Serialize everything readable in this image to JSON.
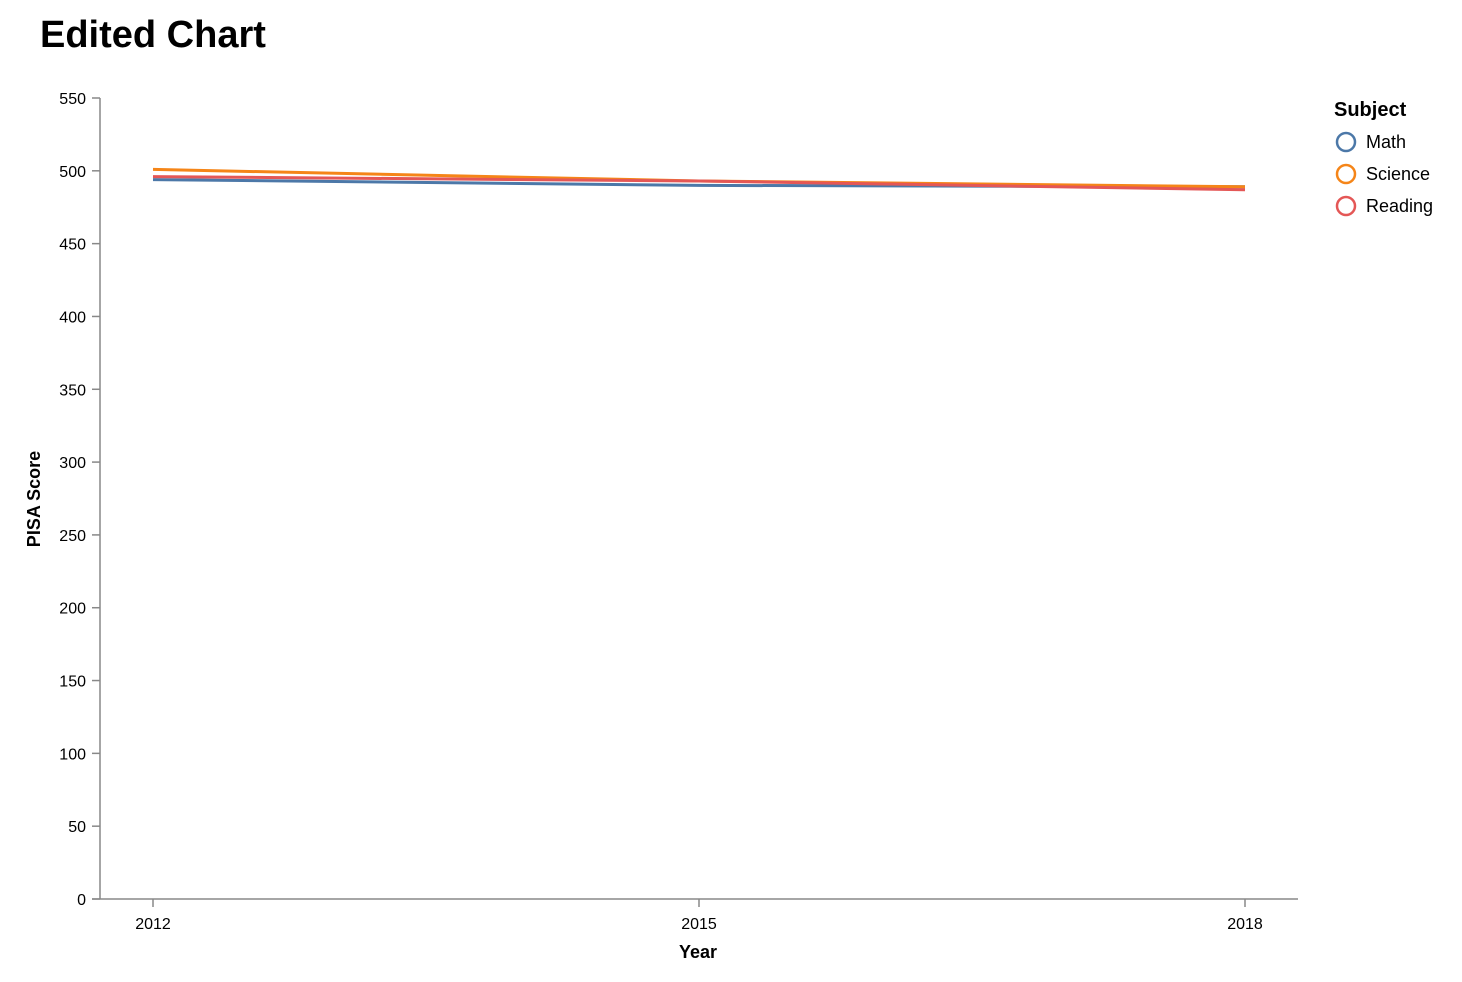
{
  "chart_data": {
    "type": "line",
    "title": "Edited Chart",
    "xlabel": "Year",
    "ylabel": "PISA Score",
    "x": [
      2012,
      2015,
      2018
    ],
    "x_ticks": [
      "2012",
      "2015",
      "2018"
    ],
    "ylim": [
      0,
      550
    ],
    "y_ticks": [
      "0",
      "50",
      "100",
      "150",
      "200",
      "250",
      "300",
      "350",
      "400",
      "450",
      "500",
      "550"
    ],
    "grid": false,
    "legend_title": "Subject",
    "legend_position": "right",
    "series": [
      {
        "name": "Math",
        "color": "#4c78a8",
        "values": [
          494,
          490,
          489
        ]
      },
      {
        "name": "Science",
        "color": "#f58518",
        "values": [
          501,
          493,
          489
        ]
      },
      {
        "name": "Reading",
        "color": "#e45756",
        "values": [
          496,
          493,
          487
        ]
      }
    ]
  }
}
